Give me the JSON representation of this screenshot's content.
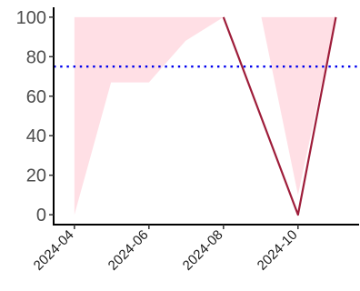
{
  "chart_data": {
    "type": "area",
    "title": "",
    "xlabel": "",
    "ylabel": "",
    "x_is_date": true,
    "xlim": [
      "2024-03-15",
      "2024-11-20"
    ],
    "ylim": [
      -5,
      105
    ],
    "x_ticks": [
      "2024-04",
      "2024-06",
      "2024-08",
      "2024-10"
    ],
    "y_ticks": [
      0,
      20,
      40,
      60,
      80,
      100
    ],
    "grid": false,
    "legend": "none",
    "ribbon": {
      "color": "#ffdfe5",
      "segments": [
        {
          "x": [
            "2024-04-01",
            "2024-05-01",
            "2024-06-01",
            "2024-07-01",
            "2024-08-01"
          ],
          "upper": [
            100,
            100,
            100,
            100,
            100
          ],
          "lower": [
            0,
            67,
            67,
            88,
            100
          ]
        },
        {
          "x": [
            "2024-09-01",
            "2024-10-01",
            "2024-11-01"
          ],
          "upper": [
            100,
            100,
            100
          ],
          "lower": [
            100,
            10,
            100
          ]
        }
      ]
    },
    "series": [
      {
        "color": "#9e1d3a",
        "x": [
          "2024-08-01",
          "2024-10-01",
          "2024-11-01"
        ],
        "values": [
          100,
          0,
          100
        ]
      }
    ],
    "reference_line": {
      "y": 75,
      "color": "#0000ee",
      "style": "dotted"
    }
  }
}
